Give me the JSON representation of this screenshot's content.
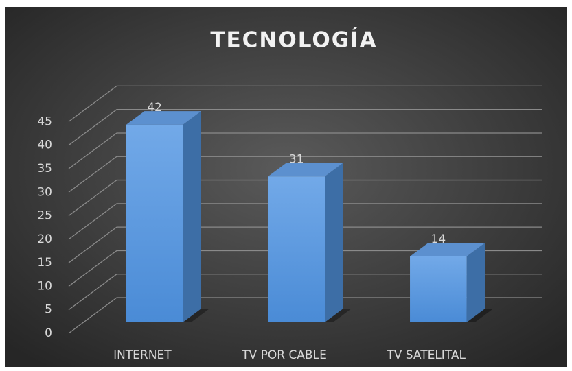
{
  "chart_data": {
    "type": "bar3d",
    "title": "TECNOLOGÍA",
    "categories": [
      "INTERNET",
      "TV POR CABLE",
      "TV SATELITAL"
    ],
    "values": [
      42,
      31,
      14
    ],
    "color": "#5b9be0",
    "ylim": [
      0,
      45
    ],
    "yticks": [
      0,
      5,
      10,
      15,
      20,
      25,
      30,
      35,
      40,
      45
    ],
    "grid": true
  }
}
